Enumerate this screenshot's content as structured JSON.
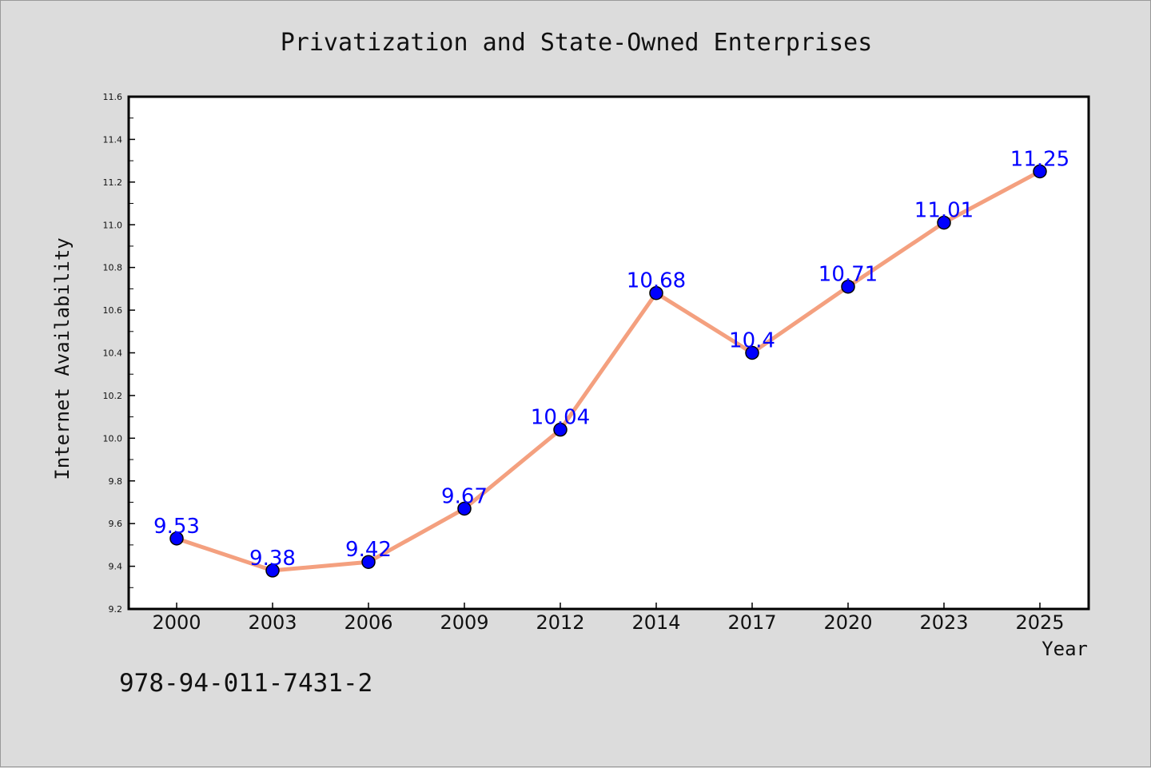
{
  "chart_data": {
    "type": "line",
    "title": "Privatization and State-Owned Enterprises",
    "xlabel": "Year",
    "ylabel": "Internet Availability",
    "categories": [
      "2000",
      "2003",
      "2006",
      "2009",
      "2012",
      "2014",
      "2017",
      "2020",
      "2023",
      "2025"
    ],
    "values": [
      9.53,
      9.38,
      9.42,
      9.67,
      10.04,
      10.68,
      10.4,
      10.71,
      11.01,
      11.25
    ],
    "data_labels": [
      "9.53",
      "9.38",
      "9.42",
      "9.67",
      "10.04",
      "10.68",
      "10.4",
      "10.71",
      "11.01",
      "11.25"
    ],
    "ylim": [
      9.2,
      11.6
    ],
    "y_ticks": [
      "9.2",
      "9.4",
      "9.6",
      "9.8",
      "10.0",
      "10.2",
      "10.4",
      "10.6",
      "10.8",
      "11.0",
      "11.2",
      "11.4",
      "11.6"
    ],
    "grid": false,
    "legend": "none"
  },
  "footer": {
    "code": "978-94-011-7431-2"
  },
  "colors": {
    "background": "#dcdcdc",
    "plot_background": "#ffffff",
    "line": "#f4a07f",
    "marker": "#0000ff",
    "data_label": "#0000ff"
  }
}
